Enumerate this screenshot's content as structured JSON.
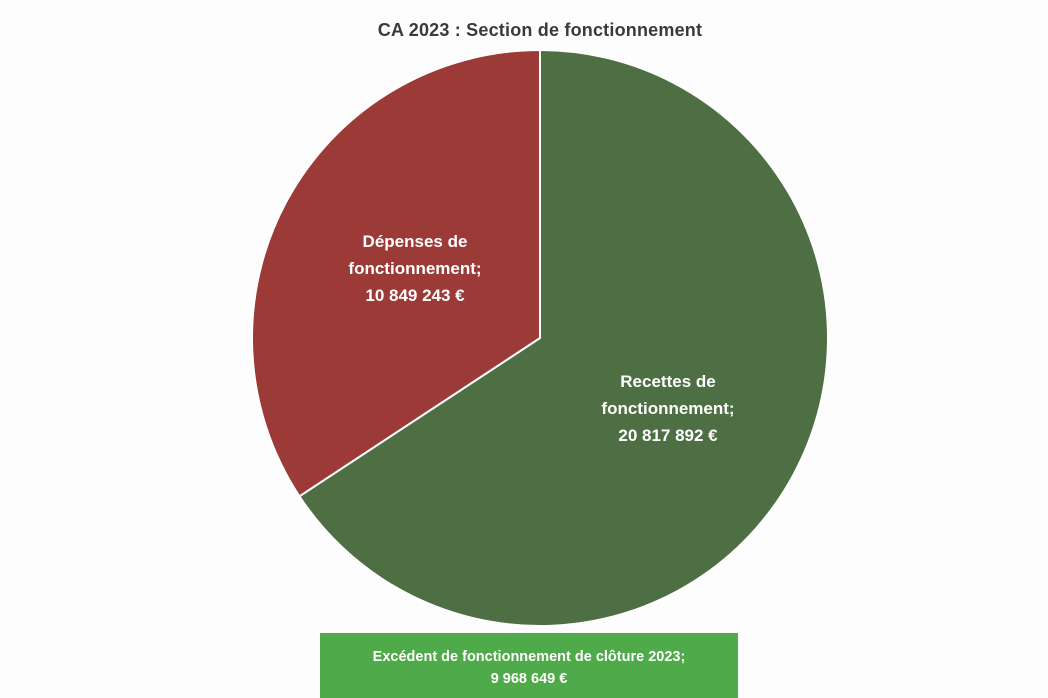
{
  "title": "CA 2023 : Section de fonctionnement",
  "chart_data": {
    "type": "pie",
    "title": "CA 2023 : Section de fonctionnement",
    "slices": [
      {
        "label_lines": [
          "Recettes de",
          "fonctionnement;"
        ],
        "value_text": "20 817 892 €",
        "value": 20817892,
        "color": "#4e6e43"
      },
      {
        "label_lines": [
          "Dépenses de",
          "fonctionnement;"
        ],
        "value_text": "10 849 243 €",
        "value": 10849243,
        "color": "#9c3a38"
      }
    ],
    "slice_border_color": "#ffffff"
  },
  "excedent": {
    "line1": "Excédent de fonctionnement de clôture 2023;",
    "line2": "9 968 649 €",
    "value": 9968649,
    "color": "#4faa4a"
  }
}
